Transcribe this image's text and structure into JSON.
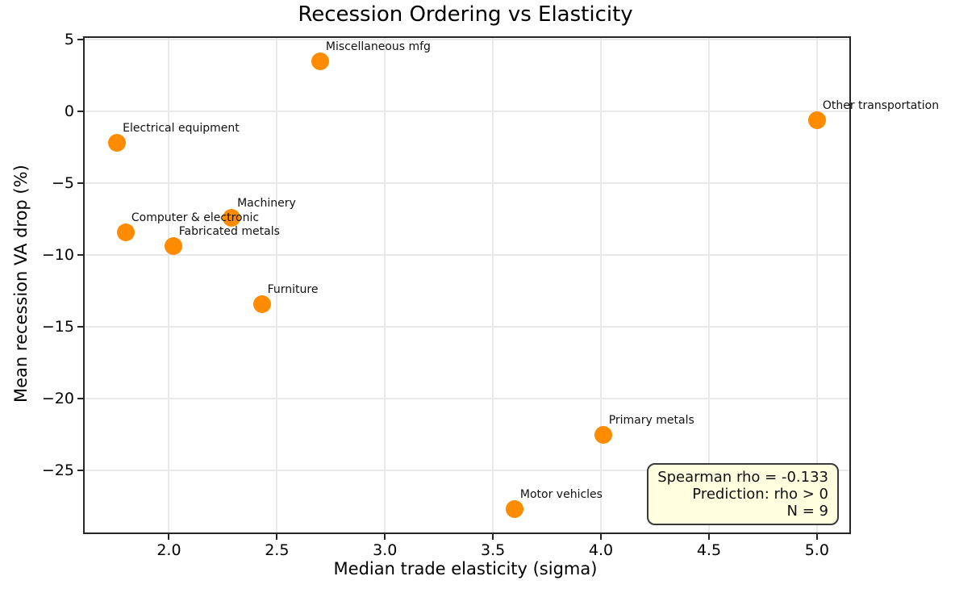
{
  "chart_data": {
    "type": "scatter",
    "title": "Recession Ordering vs Elasticity",
    "xlabel": "Median trade elasticity (sigma)",
    "ylabel": "Mean recession VA drop (%)",
    "xlim": [
      1.61,
      5.15
    ],
    "ylim": [
      -29.3,
      5.1
    ],
    "grid": true,
    "legend": "none",
    "xticks": [
      2.0,
      2.5,
      3.0,
      3.5,
      4.0,
      4.5,
      5.0
    ],
    "xtick_labels": [
      "2.0",
      "2.5",
      "3.0",
      "3.5",
      "4.0",
      "4.5",
      "5.0"
    ],
    "yticks": [
      5,
      0,
      -5,
      -10,
      -15,
      -20,
      -25
    ],
    "ytick_labels": [
      "5",
      "0",
      "−5",
      "−10",
      "−15",
      "−20",
      "−25"
    ],
    "marker_color": "#FF8C00",
    "marker_diameter_px": 22,
    "points": [
      {
        "label": "Electrical equipment",
        "x": 1.76,
        "y": -2.2
      },
      {
        "label": "Computer & electronic",
        "x": 1.8,
        "y": -8.4
      },
      {
        "label": "Fabricated metals",
        "x": 2.02,
        "y": -9.4
      },
      {
        "label": "Machinery",
        "x": 2.29,
        "y": -7.4
      },
      {
        "label": "Furniture",
        "x": 2.43,
        "y": -13.4
      },
      {
        "label": "Miscellaneous mfg",
        "x": 2.7,
        "y": 3.5
      },
      {
        "label": "Motor vehicles",
        "x": 3.6,
        "y": -27.7
      },
      {
        "label": "Primary metals",
        "x": 4.01,
        "y": -22.5
      },
      {
        "label": "Other transportation",
        "x": 5.0,
        "y": -0.6
      }
    ],
    "annotation": {
      "lines": [
        "Spearman rho = -0.133",
        "Prediction: rho > 0",
        "N = 9"
      ],
      "facecolor": "#FFFFE0",
      "edgecolor": "#3A3A3A"
    }
  }
}
